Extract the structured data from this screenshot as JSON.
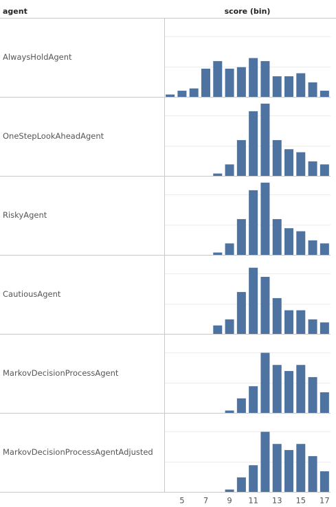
{
  "chart_data": {
    "type": "bar",
    "row_label": "agent",
    "x_label": "score (bin)",
    "categories": [
      null,
      5,
      null,
      7,
      null,
      9,
      null,
      11,
      null,
      13,
      null,
      15,
      null,
      17
    ],
    "ylim": [
      0,
      52
    ],
    "yticks": [
      0,
      20,
      40
    ],
    "grid": true,
    "color": "#4e73a1",
    "panels": [
      {
        "name": "AlwaysHoldAgent",
        "values": [
          2,
          4.5,
          6,
          19,
          24,
          19,
          20,
          26,
          24,
          14,
          14,
          16,
          10,
          4.5
        ]
      },
      {
        "name": "OneStepLookAheadAgent",
        "values": [
          0,
          0,
          0,
          0,
          2,
          8,
          24,
          43,
          48,
          24,
          18,
          16,
          10,
          8
        ]
      },
      {
        "name": "RiskyAgent",
        "values": [
          0,
          0,
          0,
          0,
          2,
          8,
          24,
          43,
          48,
          24,
          18,
          16,
          10,
          8
        ]
      },
      {
        "name": "CautiousAgent",
        "values": [
          0,
          0,
          0,
          0,
          6,
          10,
          28,
          44,
          38,
          24,
          16,
          16,
          10,
          8
        ]
      },
      {
        "name": "MarkovDecisionProcessAgent",
        "values": [
          0,
          0,
          0,
          0,
          0,
          2,
          10,
          18,
          40,
          32,
          28,
          32,
          24,
          14
        ]
      },
      {
        "name": "MarkovDecisionProcessAgentAdjusted",
        "values": [
          0,
          0,
          0,
          0,
          0,
          2,
          10,
          18,
          40,
          32,
          28,
          32,
          24,
          14
        ]
      }
    ]
  }
}
